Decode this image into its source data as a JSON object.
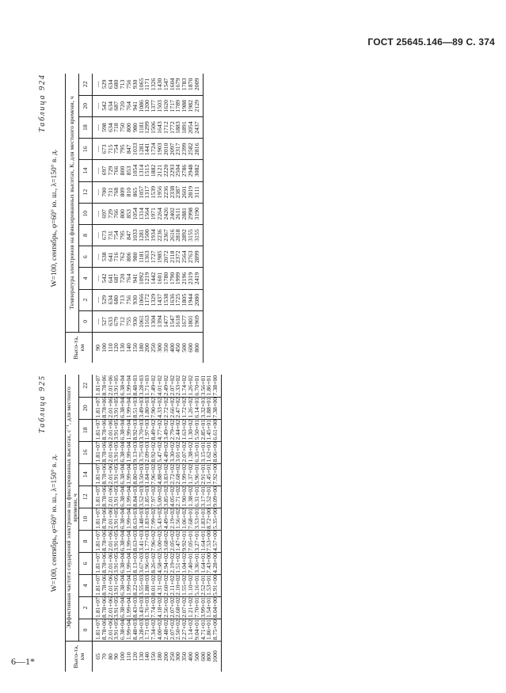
{
  "header": "ГОСТ 25645.146—89 С. 374",
  "signature": "6—1*",
  "tables": [
    {
      "number": "Таблица 924",
      "caption": "W=100, сентябрь, φ=60° ю. ш., λ=150° в. д.",
      "header_label": "Температура электронов на фиксированных высотах, К, для местного времени, ч",
      "row_header": "Высо-та, км",
      "columns": [
        "0",
        "2",
        "4",
        "6",
        "8",
        "10",
        "12",
        "14",
        "16",
        "18",
        "20",
        "22"
      ],
      "rows": [
        [
          "90",
          "—",
          "—",
          "—",
          "—",
          "—",
          "—",
          "—",
          "—",
          "—",
          "—",
          "—",
          "—"
        ],
        [
          "100",
          "527",
          "529",
          "542",
          "538",
          "673",
          "697",
          "700",
          "697",
          "673",
          "598",
          "542",
          "529"
        ],
        [
          "110",
          "633",
          "634",
          "641",
          "641",
          "731",
          "729",
          "731",
          "729",
          "715",
          "634",
          "634",
          "634"
        ],
        [
          "120",
          "679",
          "680",
          "687",
          "716",
          "754",
          "766",
          "768",
          "766",
          "754",
          "718",
          "687",
          "680"
        ],
        [
          "130",
          "712",
          "713",
          "720",
          "762",
          "795",
          "800",
          "809",
          "800",
          "795",
          "750",
          "720",
          "713"
        ],
        [
          "140",
          "755",
          "756",
          "764",
          "806",
          "847",
          "853",
          "810",
          "853",
          "847",
          "800",
          "764",
          "756"
        ],
        [
          "150",
          "930",
          "930",
          "941",
          "980",
          "1033",
          "1054",
          "865",
          "1054",
          "1033",
          "980",
          "941",
          "930"
        ],
        [
          "180",
          "1061",
          "1066",
          "1092",
          "1181",
          "1281",
          "1314",
          "1057",
          "1314",
          "1281",
          "1181",
          "1086",
          "1065"
        ],
        [
          "200",
          "1163",
          "1172",
          "1219",
          "1363",
          "1500",
          "1564",
          "1317",
          "1515",
          "1441",
          "1299",
          "1200",
          "1171"
        ],
        [
          "250",
          "1304",
          "1329",
          "1442",
          "1727",
          "1934",
          "1971",
          "1539",
          "1882",
          "1724",
          "1506",
          "1377",
          "1326"
        ],
        [
          "300",
          "1394",
          "1437",
          "1601",
          "1985",
          "2236",
          "2264",
          "1956",
          "2121",
          "1903",
          "1643",
          "1503",
          "1430"
        ],
        [
          "350",
          "1477",
          "1538",
          "1780",
          "2072",
          "2367",
          "2426",
          "2236",
          "2220",
          "2010",
          "1712",
          "1620",
          "1547"
        ],
        [
          "400",
          "1547",
          "1636",
          "1790",
          "2118",
          "2616",
          "2402",
          "2338",
          "2293",
          "2097",
          "1772",
          "1717",
          "1604"
        ],
        [
          "450",
          "1618",
          "1725",
          "1999",
          "2372",
          "2818",
          "2611",
          "2387",
          "2504",
          "2317",
          "1883",
          "1789",
          "1679"
        ],
        [
          "500",
          "1677",
          "1805",
          "2196",
          "2564",
          "2892",
          "2881",
          "2601",
          "2786",
          "2399",
          "1891",
          "1988",
          "1783"
        ],
        [
          "600",
          "1801",
          "1944",
          "2319",
          "2763",
          "3155",
          "2998",
          "2819",
          "2948",
          "2582",
          "2054",
          "1982",
          "1870"
        ],
        [
          "800",
          "1969",
          "2080",
          "2419",
          "2899",
          "3155",
          "3190",
          "3111",
          "3082",
          "2816",
          "2437",
          "2129",
          "2009"
        ]
      ]
    },
    {
      "number": "Таблица 925",
      "caption": "W=100, сентябрь, φ=60° ю. ш., λ=150° в. д.",
      "header_label": "Эффективная частота соударений электронов на фиксированных высотах, с⁻¹, для местного времени, ч",
      "row_header": "Высо-та, км",
      "columns": [
        "0",
        "2",
        "4",
        "6",
        "8",
        "10",
        "12",
        "14",
        "16",
        "18",
        "20",
        "22"
      ],
      "rows": [
        [
          "65",
          "1.81+07",
          "1.81+07",
          "1.81+07",
          "1.81+07",
          "1.81+07",
          "1.81+07",
          "1.81+07",
          "1.81+07",
          "1.81+07",
          "1.81+07",
          "1.81+07",
          "1.81+07"
        ],
        [
          "70",
          "8.78+06",
          "8.78+06",
          "8.78+06",
          "8.78+06",
          "8.78+06",
          "8.78+06",
          "8.78+06",
          "8.78+06",
          "8.78+06",
          "8.78+06",
          "8.78+06",
          "8.78+06"
        ],
        [
          "80",
          "2.01+06",
          "2.01+06",
          "2.01+06",
          "2.01+06",
          "2.01+06",
          "2.01+06",
          "2.01+06",
          "2.01+06",
          "2.01+06",
          "2.01+06",
          "2.01+06",
          "2.01+06"
        ],
        [
          "90",
          "3.91+05",
          "3.91+05",
          "3.91+05",
          "3.91+05",
          "3.91+05",
          "3.91+05",
          "3.91+05",
          "3.91+05",
          "3.91+05",
          "3.91+05",
          "3.91+05",
          "3.91+05"
        ],
        [
          "100",
          "6.38+04",
          "6.38+04",
          "6.38+04",
          "6.38+04",
          "6.38+04",
          "6.38+04",
          "6.38+04",
          "6.38+04",
          "6.38+04",
          "6.38+04",
          "6.38+04",
          "6.38+04"
        ],
        [
          "110",
          "1.99+04",
          "1.99+04",
          "1.99+04",
          "1.99+04",
          "1.99+04",
          "1.99+04",
          "1.99+04",
          "1.99+04",
          "1.99+04",
          "1.99+04",
          "1.99+04",
          "1.99+04"
        ],
        [
          "120",
          "8.48+03",
          "8.43+03",
          "8.22+03",
          "8.13+03",
          "8.63+03",
          "8.63+03",
          "8.84+03",
          "8.80+03",
          "9.13+03",
          "8.92+03",
          "8.51+03",
          "8.48+03"
        ],
        [
          "130",
          "3.28+03",
          "3.43+03",
          "3.55+03",
          "3.67+03",
          "3.41+03",
          "3.48+03",
          "3.52+03",
          "3.50+03",
          "3.75+03",
          "3.70+03",
          "3.49+03",
          "3.28+03"
        ],
        [
          "140",
          "1.71+03",
          "1.76+03",
          "1.88+03",
          "1.96+03",
          "1.77+03",
          "1.83+03",
          "1.85+03",
          "1.84+03",
          "2.09+03",
          "1.97+03",
          "1.80+03",
          "1.71+03"
        ],
        [
          "150",
          "7.34+02",
          "7.74+02",
          "8.01+02",
          "8.26+02",
          "7.96+02",
          "7.99+02",
          "7.97+02",
          "7.96+02",
          "8.92+02",
          "8.49+02",
          "7.90+02",
          "7.49+02"
        ],
        [
          "180",
          "4.00+02",
          "4.18+02",
          "4.31+02",
          "4.58+02",
          "5.00+02",
          "5.43+02",
          "5.00+02",
          "4.88+02",
          "5.47+02",
          "4.77+02",
          "4.33+02",
          "4.01+02"
        ],
        [
          "200",
          "2.48+02",
          "2.56+02",
          "2.60+02",
          "2.94+02",
          "3.68+02",
          "4.49+02",
          "3.85+02",
          "3.83+02",
          "4.49+02",
          "3.49+02",
          "2.72+02",
          "2.49+02"
        ],
        [
          "250",
          "2.07+02",
          "2.07+02",
          "2.11+02",
          "2.19+02",
          "2.05+02",
          "2.19+02",
          "4.05+02",
          "2.72+02",
          "3.30+02",
          "2.79+02",
          "2.66+02",
          "2.07+02"
        ],
        [
          "300",
          "2.50+02",
          "2.68+02",
          "2.10+02",
          "1.51+02",
          "1.47+02",
          "1.56+02",
          "2.71+02",
          "2.68+02",
          "3.01+02",
          "2.44+02",
          "2.47+02",
          "2.33+02"
        ],
        [
          "350",
          "2.27+02",
          "2.07+02",
          "1.55+02",
          "1.04+02",
          "9.92+01",
          "1.06+02",
          "1.90+02",
          "1.99+02",
          "2.07+02",
          "1.63+02",
          "1.72+02",
          "1.74+02"
        ],
        [
          "400",
          "1.14+02",
          "1.21+02",
          "1.10+02",
          "7.40+01",
          "7.05+01",
          "7.68+01",
          "1.38+02",
          "1.37+02",
          "1.38+02",
          "1.30+02",
          "1.26+02",
          "1.26+02"
        ],
        [
          "500",
          "9.04+01",
          "7.70+01",
          "5.16+01",
          "3.36+01",
          "3.27+01",
          "3.53+01",
          "6.31+01",
          "5.96+01",
          "6.35+01",
          "5.50+01",
          "6.14+01",
          "6.70+01"
        ],
        [
          "600",
          "4.71+01",
          "3.99+01",
          "2.52+01",
          "1.64+01",
          "1.64+01",
          "1.83+01",
          "3.17+01",
          "2.91+01",
          "3.15+01",
          "2.85+01",
          "3.32+01",
          "3.56+01"
        ],
        [
          "800",
          "1.86+01",
          "1.54+01",
          "1.53+01",
          "7.43+00",
          "7.53+00",
          "8.72+00",
          "1.52+01",
          "1.45+01",
          "1.62+01",
          "1.45+01",
          "1.88+01",
          "1.86+01"
        ],
        [
          "1000",
          "8.75+00",
          "8.04+00",
          "5.91+00",
          "4.28+00",
          "4.57+00",
          "5.35+00",
          "9.09+00",
          "7.92+00",
          "8.06+00",
          "6.61+00",
          "7.38+00",
          "7.38+00"
        ]
      ]
    }
  ]
}
